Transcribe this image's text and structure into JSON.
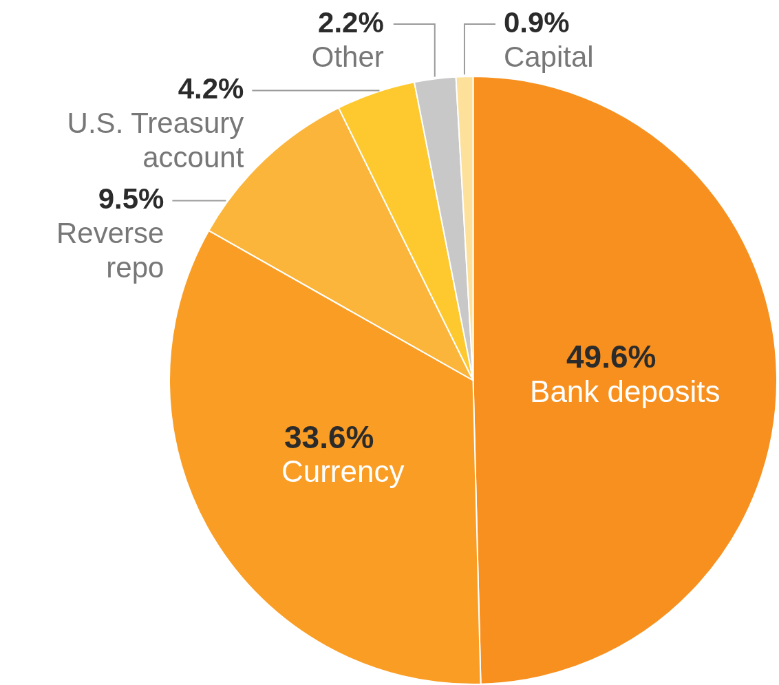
{
  "chart_data": {
    "type": "pie",
    "categories": [
      "Bank deposits",
      "Currency",
      "Reverse repo",
      "U.S. Treasury account",
      "Other",
      "Capital"
    ],
    "values": [
      49.6,
      33.6,
      9.5,
      4.2,
      2.2,
      0.9
    ],
    "value_labels": [
      "49.6%",
      "33.6%",
      "9.5%",
      "4.2%",
      "2.2%",
      "0.9%"
    ],
    "colors": [
      "#f7901e",
      "#f99d25",
      "#fbb53a",
      "#fec92f",
      "#c8c8c8",
      "#fde09a"
    ],
    "legend": false
  }
}
